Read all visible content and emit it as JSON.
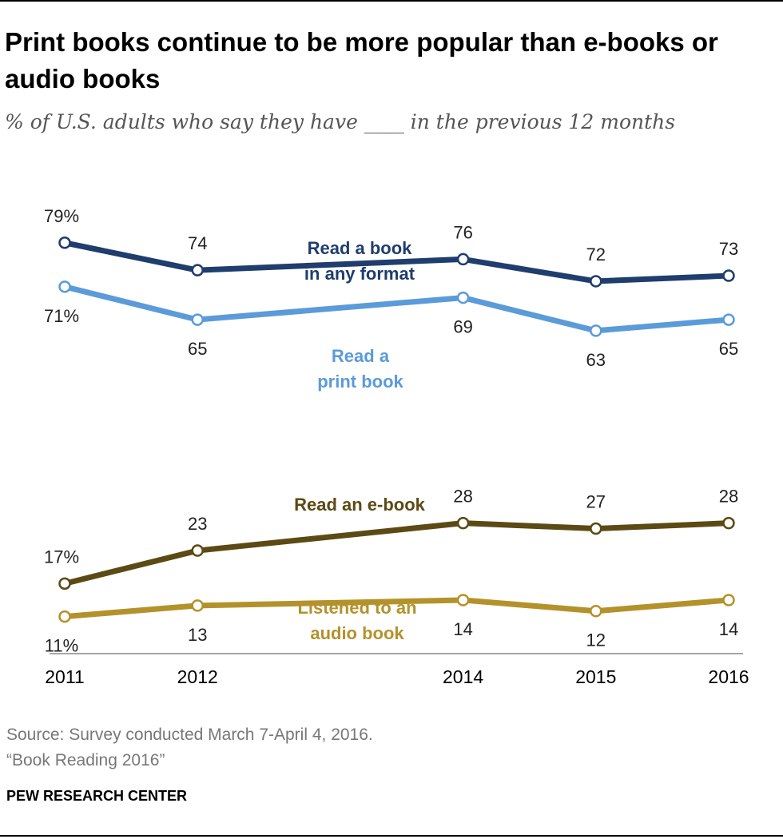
{
  "chart_data": {
    "type": "line",
    "title": "Print books continue to be more popular than e-books or audio books",
    "subtitle": "% of U.S. adults who say they have ____ in the previous 12 months",
    "x": [
      2011,
      2012,
      2014,
      2015,
      2016
    ],
    "x_tick_labels": [
      "2011",
      "2012",
      "2014",
      "2015",
      "2016"
    ],
    "ylim": [
      0,
      100
    ],
    "grid": false,
    "series": [
      {
        "name": "Read a book in any format",
        "label_lines": [
          "Read a book",
          "in any format"
        ],
        "color": "#1f3d6e",
        "values": [
          79,
          74,
          76,
          72,
          73
        ],
        "value_labels": [
          "79%",
          "74",
          "76",
          "72",
          "73"
        ],
        "label_side": [
          "above",
          "above",
          "above",
          "above",
          "above"
        ]
      },
      {
        "name": "Read a print book",
        "label_lines": [
          "Read a",
          "print book"
        ],
        "color": "#5b9bd9",
        "values": [
          71,
          65,
          69,
          63,
          65
        ],
        "value_labels": [
          "71%",
          "65",
          "69",
          "63",
          "65"
        ],
        "label_side": [
          "below",
          "below",
          "below",
          "below",
          "below"
        ]
      },
      {
        "name": "Read an e-book",
        "label_lines": [
          "Read an e-book"
        ],
        "color": "#5c4a14",
        "values": [
          17,
          23,
          28,
          27,
          28
        ],
        "value_labels": [
          "17%",
          "23",
          "28",
          "27",
          "28"
        ],
        "label_side": [
          "above",
          "above",
          "above",
          "above",
          "above"
        ]
      },
      {
        "name": "Listened to an audio book",
        "label_lines": [
          "Listened to an",
          "audio book"
        ],
        "color": "#b4922b",
        "values": [
          11,
          13,
          14,
          12,
          14
        ],
        "value_labels": [
          "11%",
          "13",
          "14",
          "12",
          "14"
        ],
        "label_side": [
          "below",
          "below",
          "below",
          "below",
          "below"
        ]
      }
    ]
  },
  "footer": {
    "source_line1": "Source: Survey conducted March 7-April 4, 2016.",
    "source_line2": "“Book Reading 2016”",
    "org": "PEW RESEARCH CENTER"
  }
}
